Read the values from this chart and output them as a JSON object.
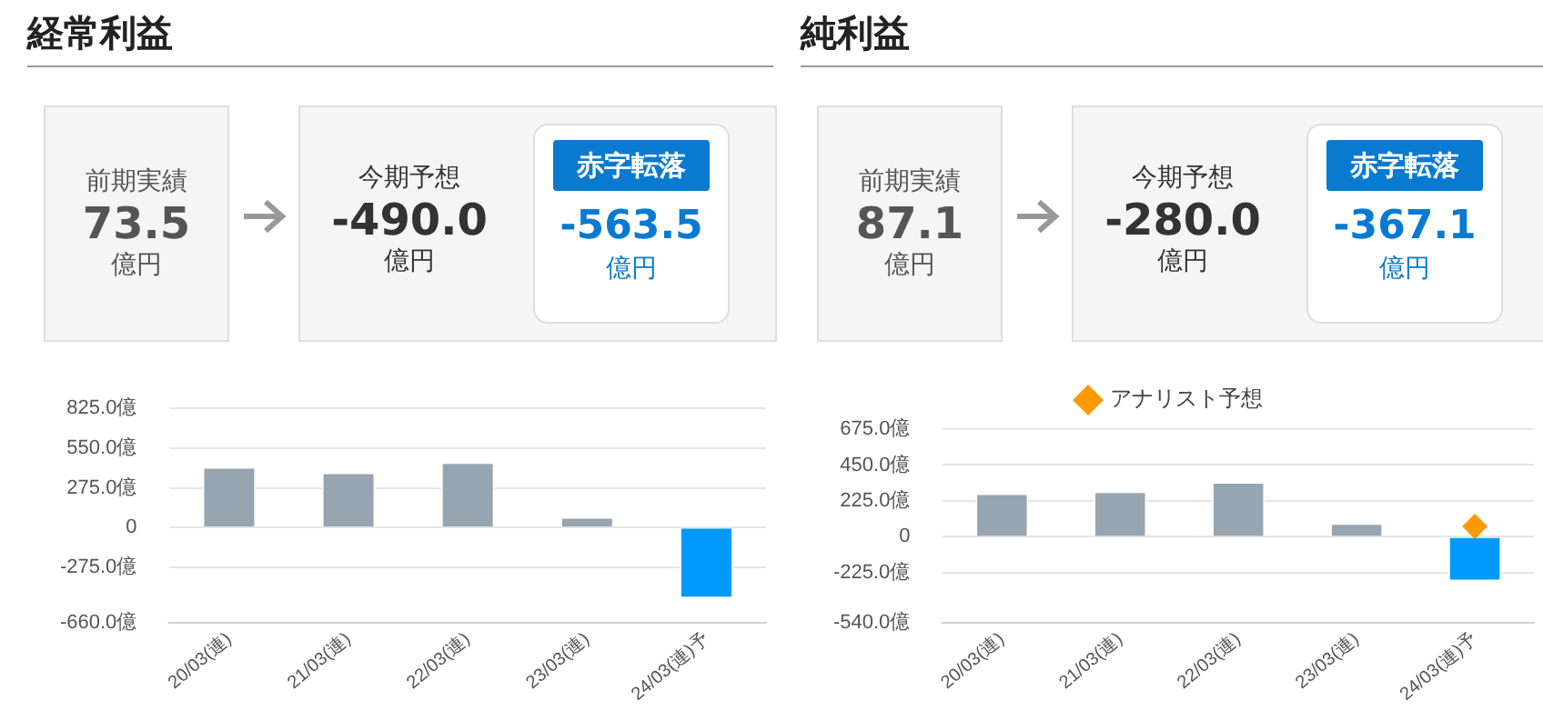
{
  "chart_data": [
    {
      "type": "other",
      "title": "経常利益",
      "annotations": [
        "前期実績",
        "73.5",
        "億円",
        "今期予想",
        "-490.0",
        "億円",
        "赤字転落",
        "-563.5",
        "億円"
      ]
    },
    {
      "type": "bar",
      "categories": [
        "20/03(連)",
        "21/03(連)",
        "22/03(連)",
        "23/03(連)",
        "24/03(連)予"
      ],
      "values": [
        421,
        383,
        454,
        73.5,
        -490
      ],
      "colors": [
        "#97a5b0",
        "#97a5b0",
        "#97a5b0",
        "#97a5b0",
        "#0099ff"
      ],
      "ylim": [
        -660,
        825
      ],
      "yticks": [
        {
          "value": -660,
          "label": "-660.0億"
        },
        {
          "value": -275,
          "label": "-275.0億"
        },
        0,
        {
          "value": 275,
          "label": "275.0億"
        },
        {
          "value": 550,
          "label": "550.0億"
        },
        {
          "value": 825,
          "label": "825.0億"
        }
      ],
      "grid": "y",
      "legend": false
    },
    {
      "type": "other",
      "title": "純利益",
      "annotations": [
        "前期実績",
        "87.1",
        "億円",
        "今期予想",
        "-280.0",
        "億円",
        "赤字転落",
        "-367.1",
        "億円"
      ]
    },
    {
      "type": "bar",
      "categories": [
        "20/03(連)",
        "21/03(連)",
        "22/03(連)",
        "23/03(連)",
        "24/03(連)予"
      ],
      "ylim": [
        -540,
        675
      ],
      "yticks": [
        {
          "value": -540,
          "label": "-540.0億"
        },
        {
          "value": -225,
          "label": "-225.0億"
        },
        0,
        {
          "value": 225,
          "label": "225.0億"
        },
        {
          "value": 450,
          "label": "450.0億"
        },
        {
          "value": 675,
          "label": "675.0億"
        }
      ],
      "grid": "y",
      "legend": "top",
      "series": [
        {
          "values": [
            273,
            286,
            344,
            87.1,
            -280
          ],
          "colors": [
            "#97a5b0",
            "#97a5b0",
            "#97a5b0",
            "#97a5b0",
            "#0099ff"
          ]
        },
        {
          "type": "scatter",
          "name": "アナリスト予想",
          "color": "#ff9900",
          "x": [
            "24/03(連)予"
          ],
          "values": [
            65
          ],
          "marker": "diamond"
        }
      ]
    }
  ]
}
